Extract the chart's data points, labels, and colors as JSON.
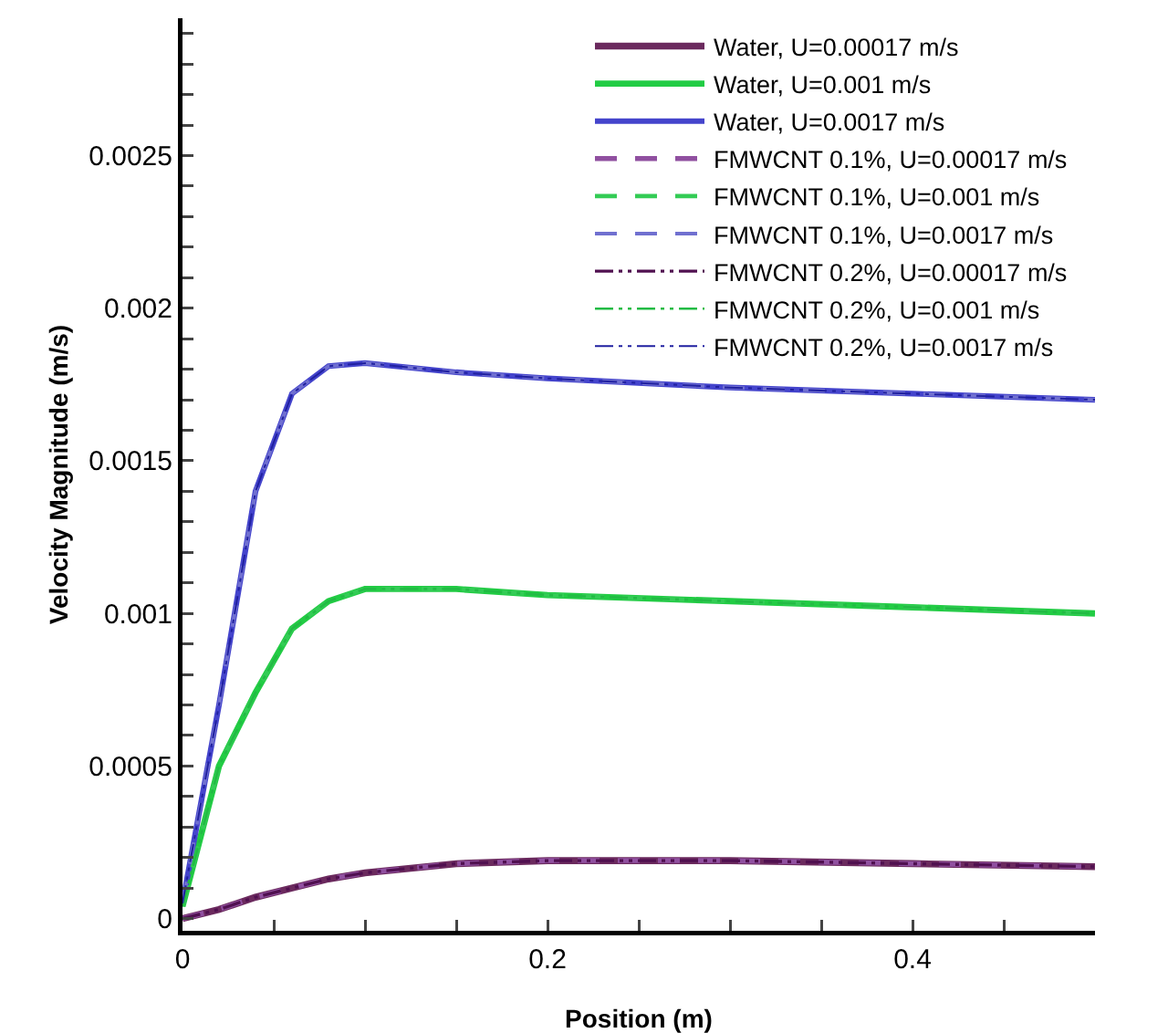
{
  "chart_data": {
    "type": "line",
    "xlabel": "Position (m)",
    "ylabel": "Velocity Magnitude (m/s)",
    "xlim": [
      0,
      0.5
    ],
    "ylim": [
      -4e-05,
      0.00295
    ],
    "xticks": [
      0,
      {
        "value": 0.05,
        "label": null
      },
      {
        "value": 0.1,
        "label": null
      },
      {
        "value": 0.15,
        "label": null
      },
      {
        "value": 0.2,
        "label": "0.2"
      },
      {
        "value": 0.25,
        "label": null
      },
      {
        "value": 0.3,
        "label": null
      },
      {
        "value": 0.35,
        "label": null
      },
      {
        "value": 0.4,
        "label": "0.4"
      },
      {
        "value": 0.45,
        "label": null
      }
    ],
    "yticks": [
      0,
      {
        "value": 0.0001,
        "label": null
      },
      {
        "value": 0.0002,
        "label": null
      },
      {
        "value": 0.0003,
        "label": null
      },
      {
        "value": 0.0004,
        "label": null
      },
      0.0005,
      {
        "value": 0.0006,
        "label": null
      },
      {
        "value": 0.0007,
        "label": null
      },
      {
        "value": 0.0008,
        "label": null
      },
      {
        "value": 0.0009,
        "label": null
      },
      0.001,
      {
        "value": 0.0011,
        "label": null
      },
      {
        "value": 0.0012,
        "label": null
      },
      {
        "value": 0.0013,
        "label": null
      },
      {
        "value": 0.0014,
        "label": null
      },
      0.0015,
      {
        "value": 0.0016,
        "label": null
      },
      {
        "value": 0.0017,
        "label": null
      },
      {
        "value": 0.0018,
        "label": null
      },
      {
        "value": 0.0019,
        "label": null
      },
      0.002,
      {
        "value": 0.0021,
        "label": null
      },
      {
        "value": 0.0022,
        "label": null
      },
      {
        "value": 0.0023,
        "label": null
      },
      {
        "value": 0.0024,
        "label": null
      },
      0.0025,
      {
        "value": 0.0026,
        "label": null
      },
      {
        "value": 0.0027,
        "label": null
      },
      {
        "value": 0.0028,
        "label": null
      },
      {
        "value": 0.0029,
        "label": null
      }
    ],
    "grid": false,
    "legend": "top right",
    "marker": "none",
    "x": [
      0,
      0.02,
      0.04,
      0.06,
      0.08,
      0.1,
      0.15,
      0.2,
      0.3,
      0.4,
      0.5
    ],
    "series": [
      {
        "name": "Water, U=0.00017 m/s",
        "color": "#6b2a5e",
        "line_style": "solid",
        "values": [
          0,
          3e-05,
          7e-05,
          0.0001,
          0.00013,
          0.00015,
          0.00018,
          0.00019,
          0.00019,
          0.00018,
          0.00017
        ]
      },
      {
        "name": "Water, U=0.001 m/s",
        "color": "#22cc44",
        "line_style": "solid",
        "values": [
          4e-05,
          0.0005,
          0.00074,
          0.00095,
          0.00104,
          0.00108,
          0.00108,
          0.00106,
          0.00104,
          0.00102,
          0.001
        ]
      },
      {
        "name": "Water, U=0.0017 m/s",
        "color": "#4444cc",
        "line_style": "solid",
        "values": [
          5e-05,
          0.0007,
          0.0014,
          0.00172,
          0.00181,
          0.00182,
          0.00179,
          0.00177,
          0.00174,
          0.00172,
          0.0017
        ]
      },
      {
        "name": "FMWCNT 0.1%, U=0.00017 m/s",
        "color": "#9050a0",
        "line_style": "dashed",
        "values": [
          0,
          3e-05,
          7e-05,
          0.0001,
          0.00013,
          0.00015,
          0.00018,
          0.00019,
          0.00019,
          0.00018,
          0.00017
        ]
      },
      {
        "name": "FMWCNT 0.1%, U=0.001 m/s",
        "color": "#33cc55",
        "line_style": "dashed",
        "values": [
          4e-05,
          0.0005,
          0.00074,
          0.00095,
          0.00104,
          0.00108,
          0.00108,
          0.00106,
          0.00104,
          0.00102,
          0.001
        ]
      },
      {
        "name": "FMWCNT 0.1%, U=0.0017 m/s",
        "color": "#7070d0",
        "line_style": "dashed",
        "values": [
          5e-05,
          0.0007,
          0.0014,
          0.00172,
          0.00181,
          0.00182,
          0.00179,
          0.00177,
          0.00174,
          0.00172,
          0.0017
        ]
      },
      {
        "name": "FMWCNT 0.2%, U=0.00017 m/s",
        "color": "#501050",
        "line_style": "dashdot",
        "values": [
          0,
          3e-05,
          7e-05,
          0.0001,
          0.00013,
          0.00015,
          0.00018,
          0.00019,
          0.00019,
          0.00018,
          0.00017
        ]
      },
      {
        "name": "FMWCNT 0.2%, U=0.001 m/s",
        "color": "#22bb44",
        "line_style": "dashdot",
        "values": [
          4e-05,
          0.0005,
          0.00074,
          0.00095,
          0.00104,
          0.00108,
          0.00108,
          0.00106,
          0.00104,
          0.00102,
          0.001
        ]
      },
      {
        "name": "FMWCNT 0.2%, U=0.0017 m/s",
        "color": "#2020a0",
        "line_style": "dashdot",
        "values": [
          5e-05,
          0.0007,
          0.0014,
          0.00172,
          0.00181,
          0.00182,
          0.00179,
          0.00177,
          0.00174,
          0.00172,
          0.0017
        ]
      }
    ]
  }
}
